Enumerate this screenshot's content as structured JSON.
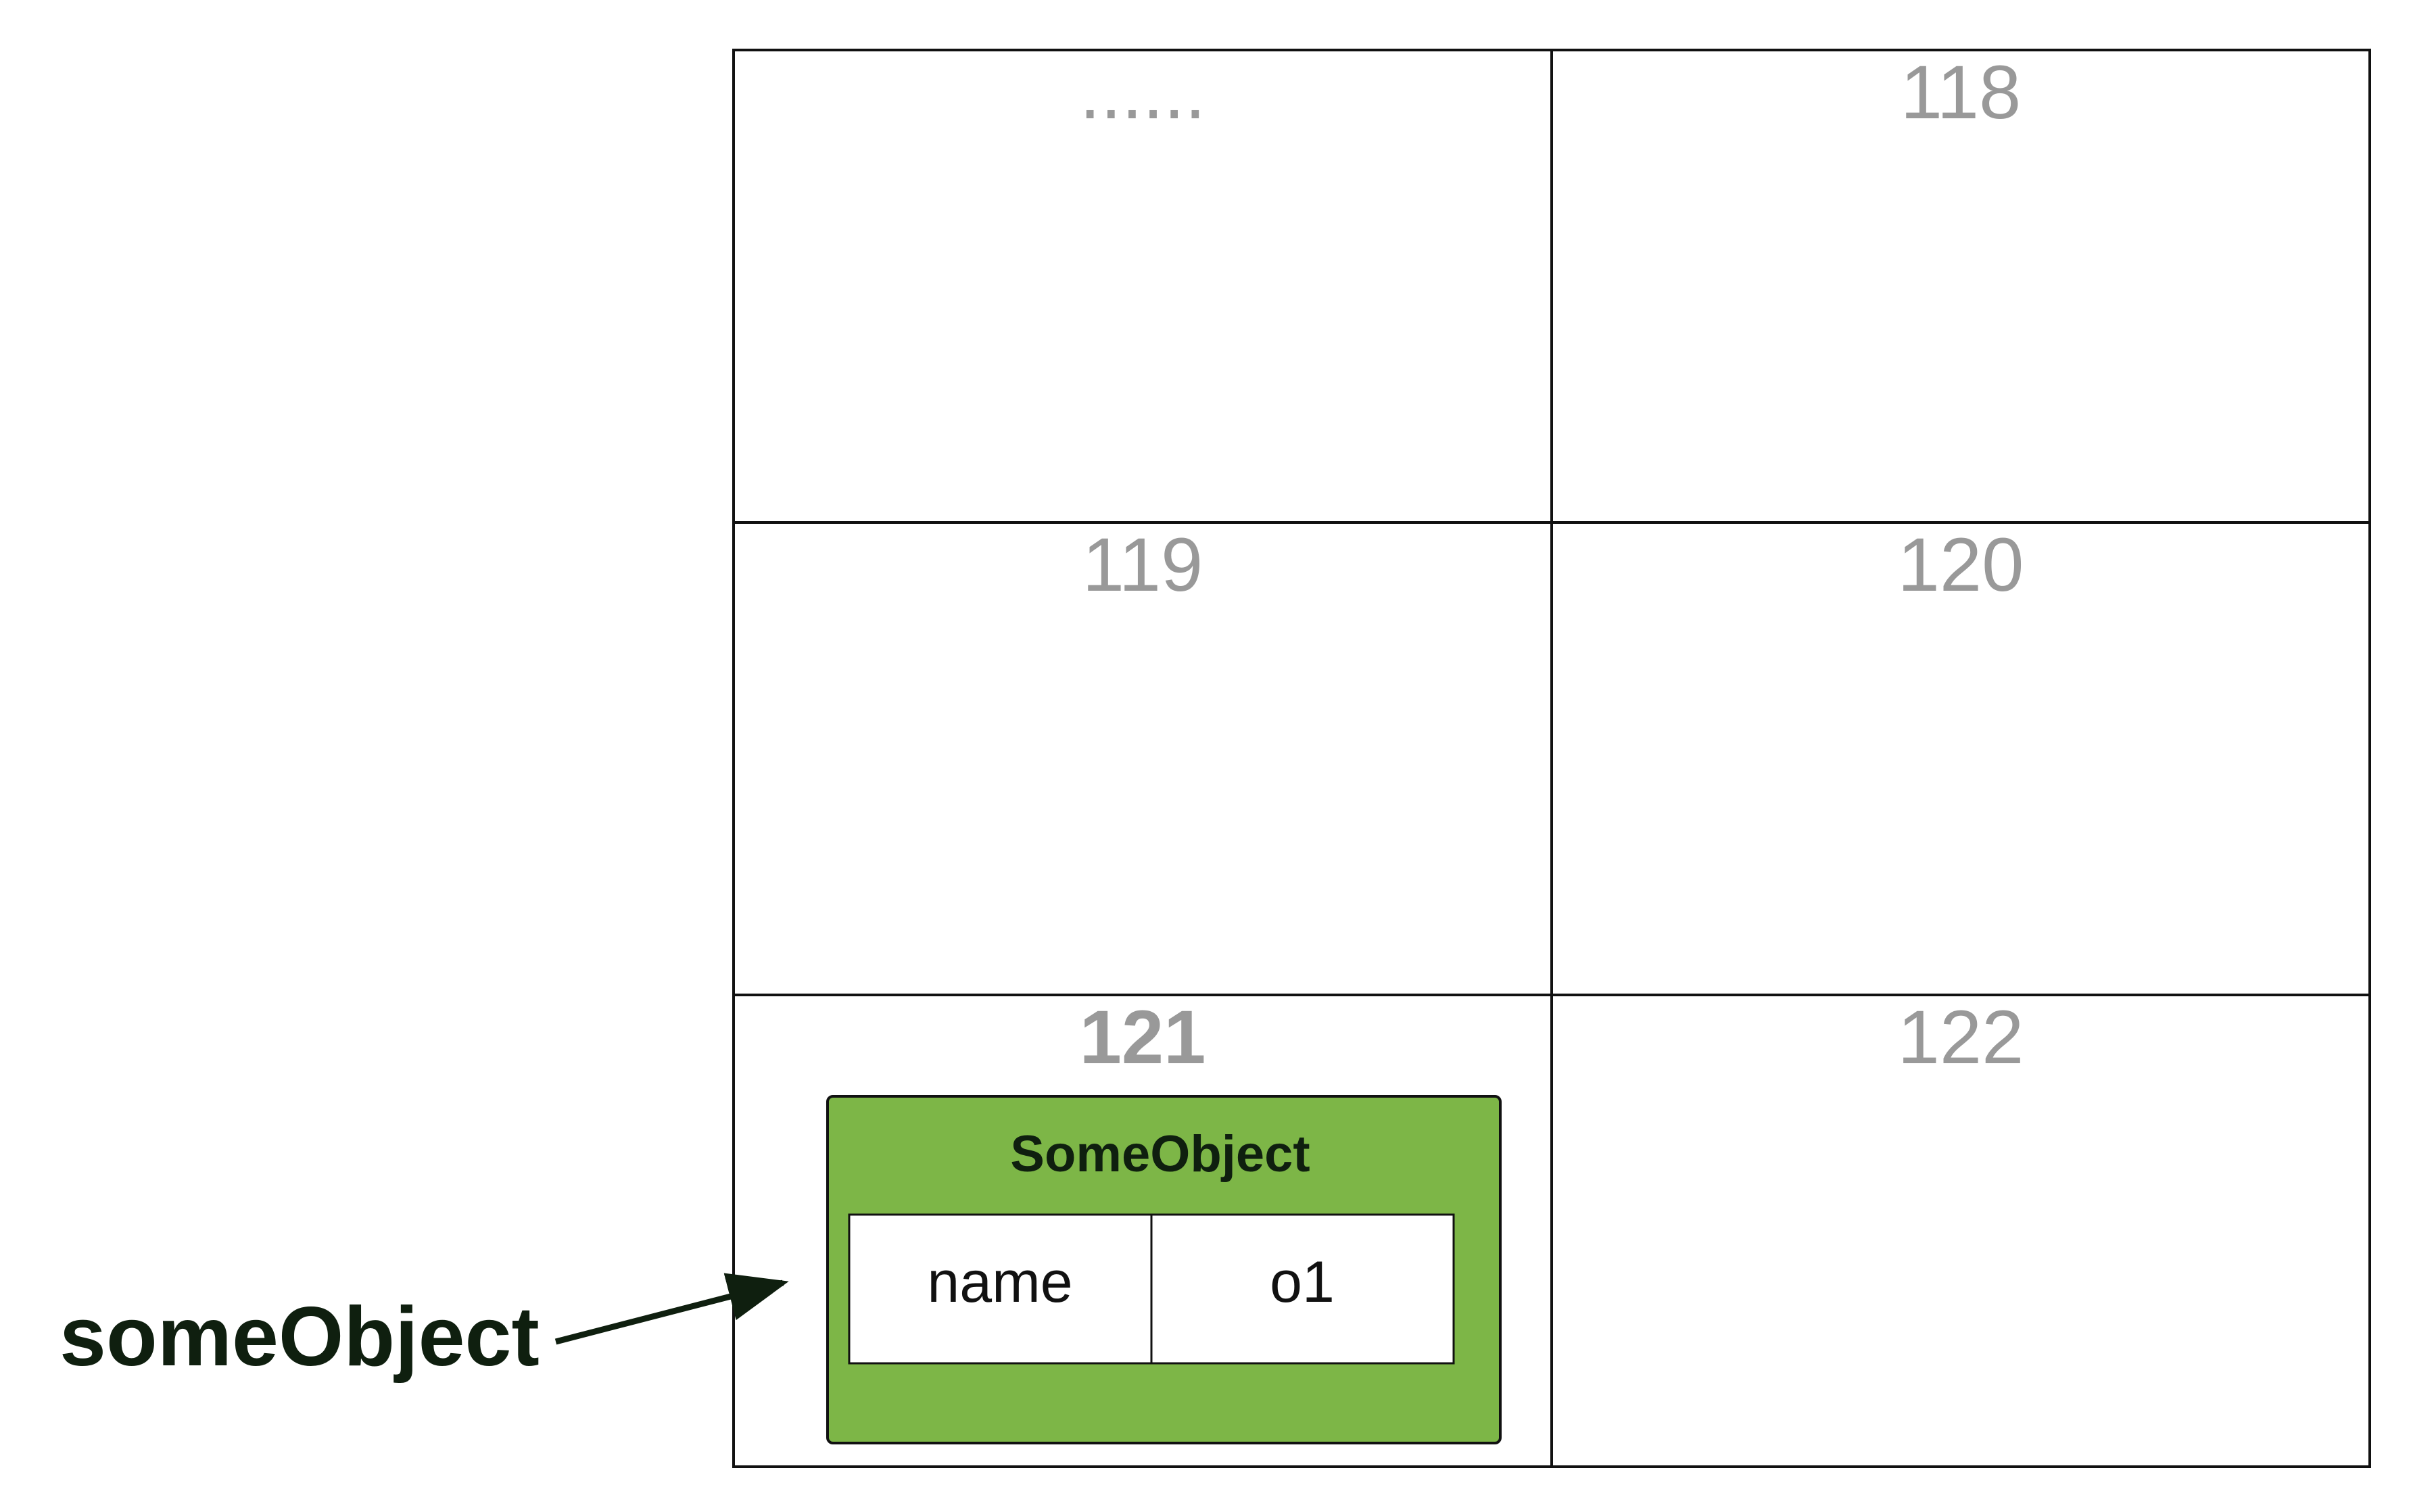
{
  "memory": {
    "cells": [
      {
        "address": "......"
      },
      {
        "address": "118"
      },
      {
        "address": "119"
      },
      {
        "address": "120"
      },
      {
        "address": "121"
      },
      {
        "address": "122"
      }
    ]
  },
  "object": {
    "class_name": "SomeObject",
    "fields": [
      {
        "name": "name",
        "value": "o1"
      }
    ],
    "fill_color": "#7db647"
  },
  "reference": {
    "variable": "someObject"
  }
}
